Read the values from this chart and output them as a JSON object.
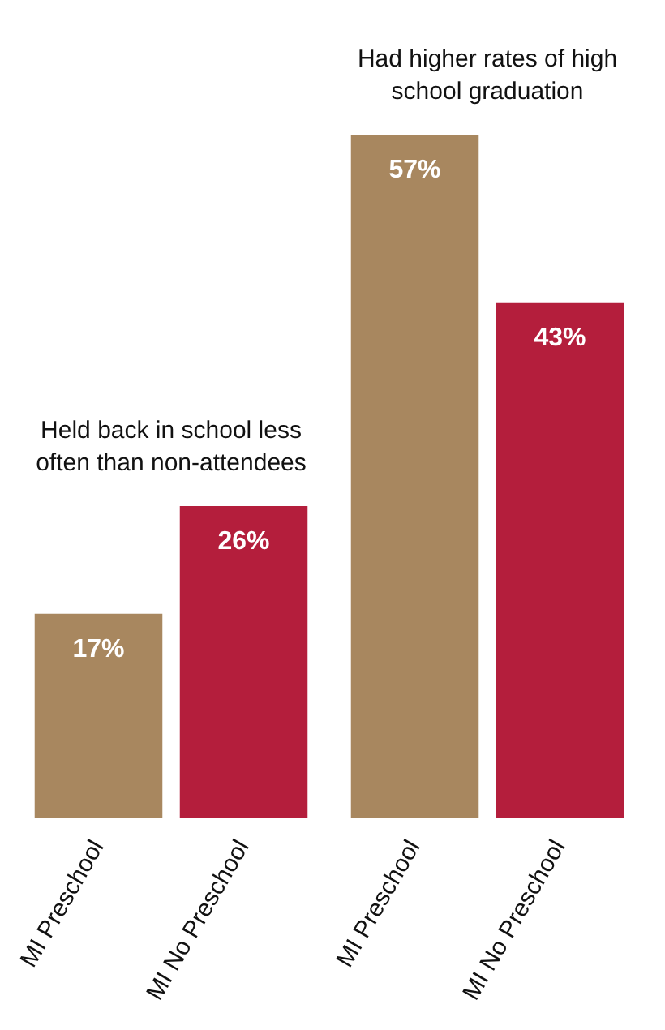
{
  "chart_data": [
    {
      "type": "bar",
      "title": "Held back in school less often than non-attendees",
      "categories": [
        "MI Preschool",
        "MI No Preschool"
      ],
      "values": [
        17,
        26
      ],
      "colors": [
        "#a8875f",
        "#b41e3c"
      ],
      "value_labels": [
        "17%",
        "26%"
      ]
    },
    {
      "type": "bar",
      "title": "Had higher rates of high school graduation",
      "categories": [
        "MI Preschool",
        "MI No Preschool"
      ],
      "values": [
        57,
        43
      ],
      "colors": [
        "#a8875f",
        "#b41e3c"
      ],
      "value_labels": [
        "57%",
        "43%"
      ]
    }
  ]
}
